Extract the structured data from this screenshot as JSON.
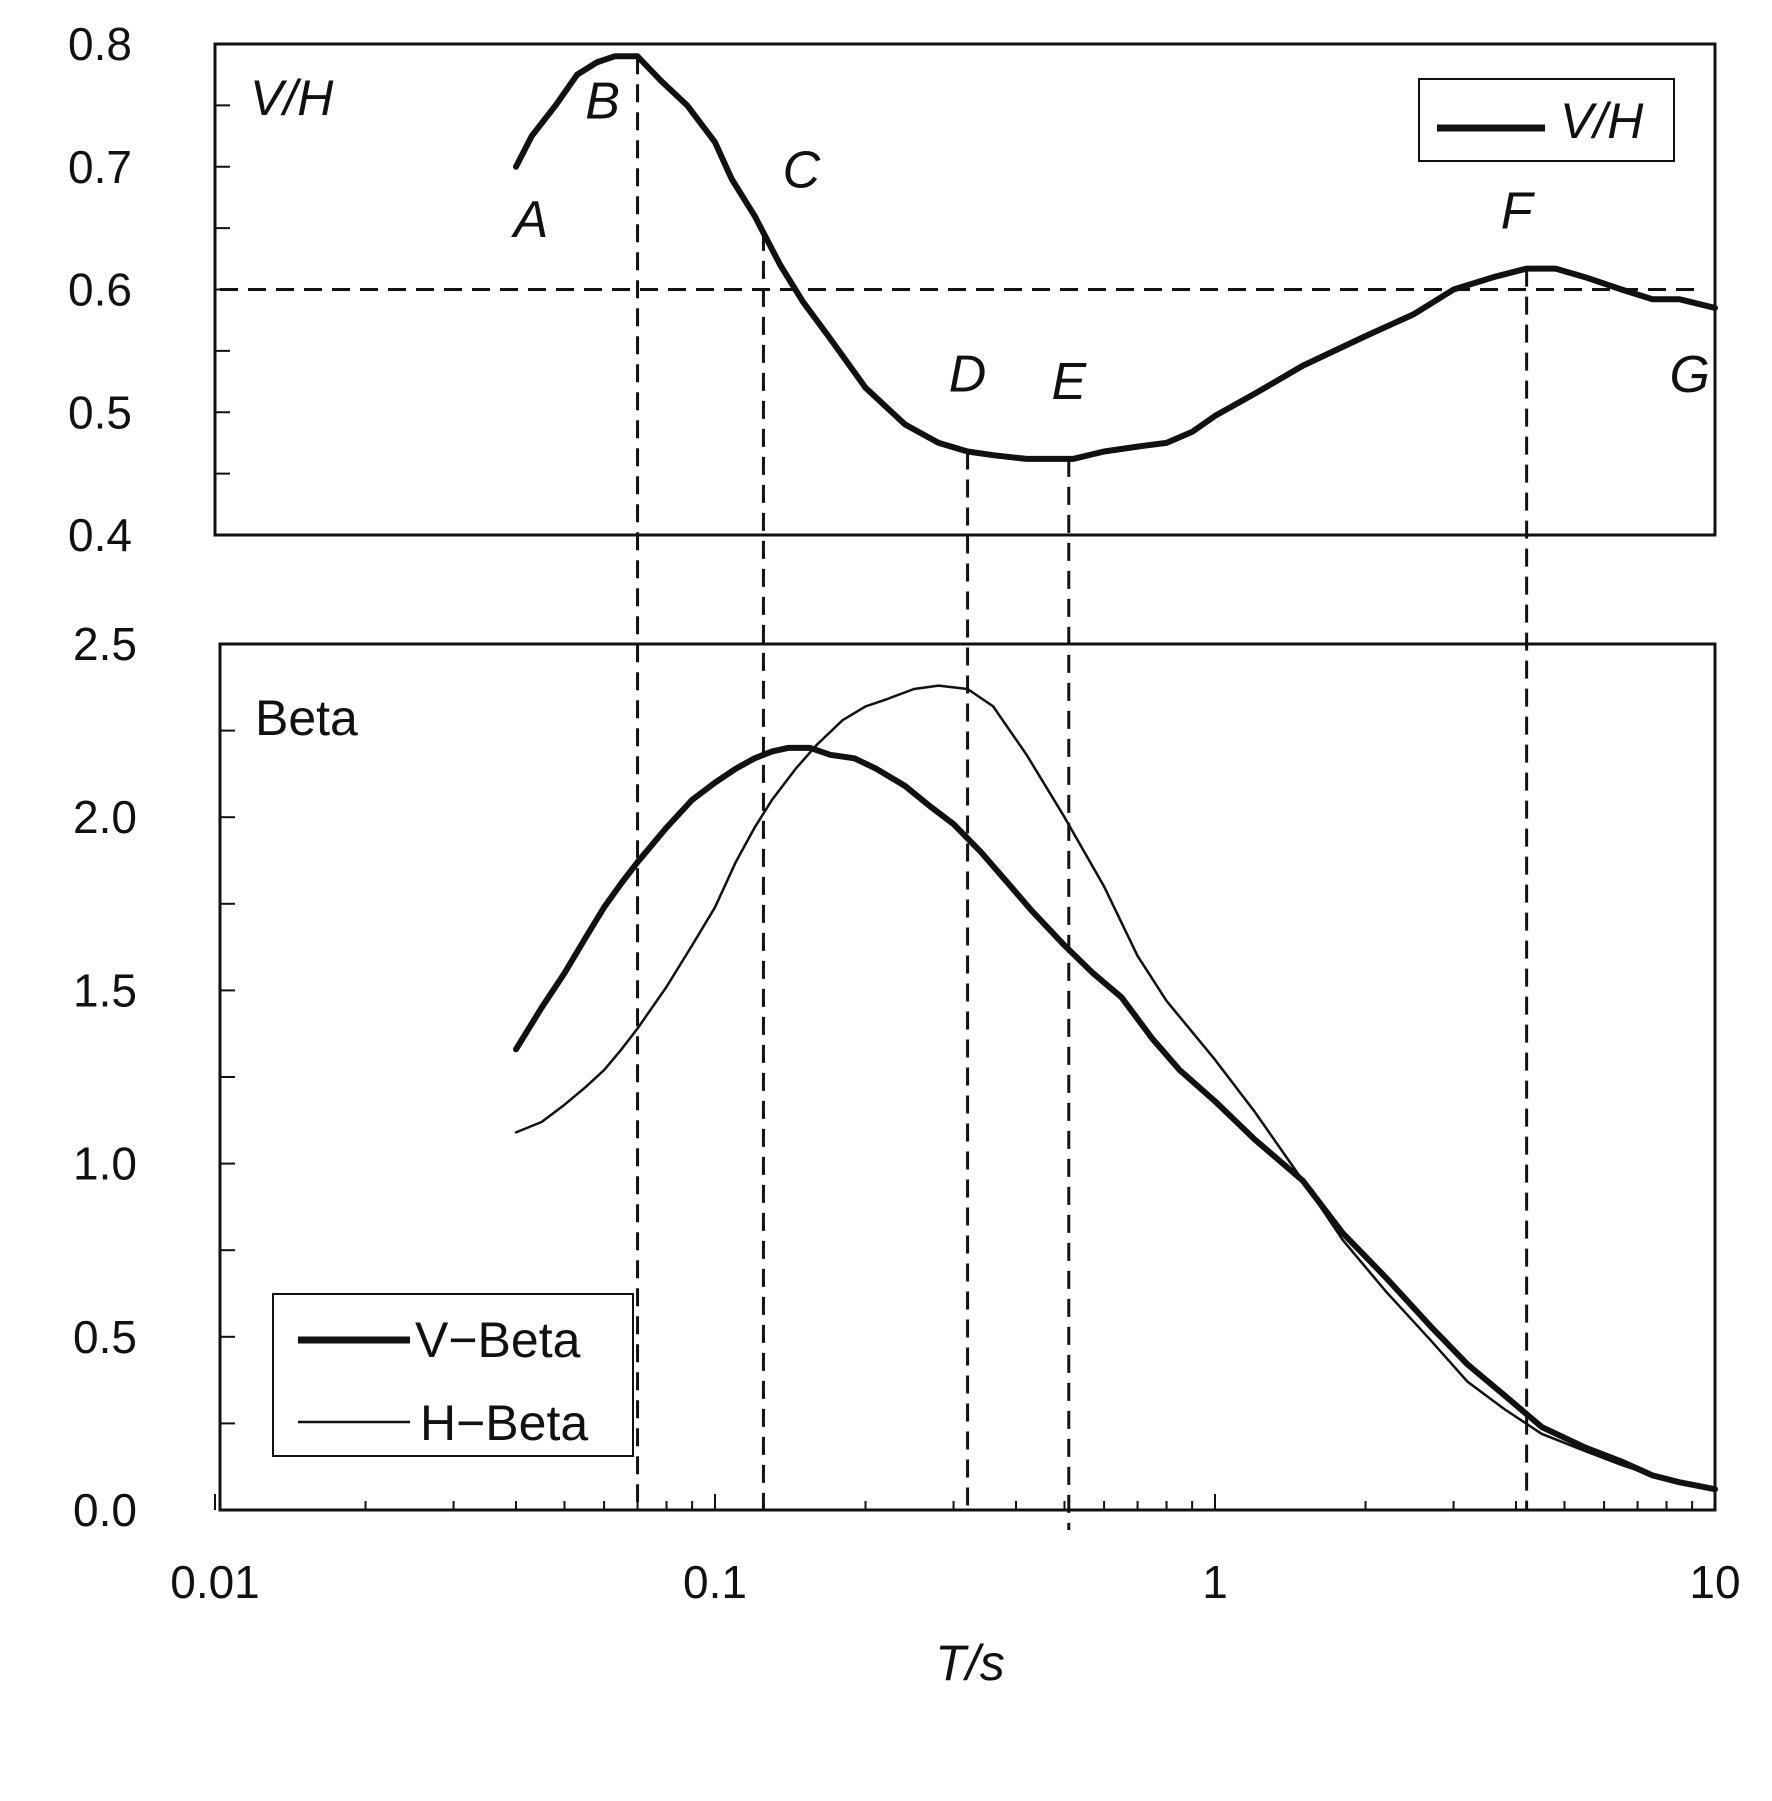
{
  "chart_data": [
    {
      "type": "line",
      "panel": "top",
      "title": "",
      "panel_label": "V/H",
      "xlabel": "T/s",
      "ylabel": "",
      "xscale": "log",
      "xlim": [
        0.01,
        10
      ],
      "ylim": [
        0.4,
        0.8
      ],
      "yticks": [
        "0.4",
        "0.5",
        "0.6",
        "0.7",
        "0.8"
      ],
      "grid": false,
      "legend_position": "top-right",
      "legend": [
        "V/H"
      ],
      "reference_line_y": 0.6,
      "series": [
        {
          "name": "V/H",
          "x": [
            0.04,
            0.043,
            0.048,
            0.053,
            0.058,
            0.063,
            0.07,
            0.078,
            0.088,
            0.1,
            0.108,
            0.12,
            0.135,
            0.15,
            0.17,
            0.2,
            0.24,
            0.28,
            0.32,
            0.36,
            0.42,
            0.47,
            0.52,
            0.6,
            0.7,
            0.8,
            0.9,
            1.0,
            1.2,
            1.5,
            2.0,
            2.5,
            3.0,
            3.6,
            4.2,
            4.8,
            5.5,
            6.5,
            7.5,
            8.5,
            10.0
          ],
          "values": [
            0.7,
            0.725,
            0.75,
            0.775,
            0.785,
            0.79,
            0.79,
            0.77,
            0.75,
            0.72,
            0.69,
            0.66,
            0.62,
            0.59,
            0.56,
            0.52,
            0.49,
            0.475,
            0.468,
            0.465,
            0.462,
            0.462,
            0.462,
            0.468,
            0.472,
            0.475,
            0.484,
            0.497,
            0.515,
            0.538,
            0.562,
            0.58,
            0.6,
            0.61,
            0.617,
            0.617,
            0.61,
            0.6,
            0.592,
            0.592,
            0.585
          ]
        }
      ],
      "points": [
        {
          "label": "A",
          "x": 0.04,
          "y": 0.7
        },
        {
          "label": "B",
          "x": 0.07,
          "y": 0.79
        },
        {
          "label": "C",
          "x": 0.125,
          "y": 0.665
        },
        {
          "label": "D",
          "x": 0.32,
          "y": 0.468
        },
        {
          "label": "E",
          "x": 0.51,
          "y": 0.462
        },
        {
          "label": "F",
          "x": 4.2,
          "y": 0.617
        },
        {
          "label": "G",
          "x": 8.5,
          "y": 0.59
        }
      ]
    },
    {
      "type": "line",
      "panel": "bottom",
      "title": "",
      "panel_label": "Beta",
      "xlabel": "T/s",
      "ylabel": "",
      "xscale": "log",
      "xlim": [
        0.01,
        10
      ],
      "ylim": [
        0.0,
        2.5
      ],
      "yticks": [
        "0.0",
        "0.5",
        "1.0",
        "1.5",
        "2.0",
        "2.5"
      ],
      "xticks": [
        "0.01",
        "0.1",
        "1",
        "10"
      ],
      "grid": false,
      "legend_position": "bottom-left",
      "legend": [
        "V−Beta",
        "H−Beta"
      ],
      "series": [
        {
          "name": "V-Beta",
          "x": [
            0.04,
            0.045,
            0.05,
            0.055,
            0.06,
            0.065,
            0.07,
            0.08,
            0.09,
            0.1,
            0.11,
            0.12,
            0.13,
            0.14,
            0.155,
            0.17,
            0.19,
            0.21,
            0.24,
            0.27,
            0.3,
            0.34,
            0.38,
            0.43,
            0.5,
            0.57,
            0.65,
            0.75,
            0.85,
            1.0,
            1.2,
            1.5,
            1.8,
            2.2,
            2.7,
            3.2,
            3.8,
            4.5,
            5.5,
            6.5,
            7.5,
            8.5,
            10.0
          ],
          "values": [
            1.33,
            1.45,
            1.55,
            1.65,
            1.74,
            1.81,
            1.87,
            1.97,
            2.05,
            2.1,
            2.14,
            2.17,
            2.19,
            2.2,
            2.2,
            2.18,
            2.17,
            2.14,
            2.09,
            2.03,
            1.98,
            1.9,
            1.82,
            1.73,
            1.63,
            1.55,
            1.48,
            1.36,
            1.27,
            1.18,
            1.07,
            0.95,
            0.8,
            0.67,
            0.53,
            0.42,
            0.33,
            0.24,
            0.18,
            0.14,
            0.1,
            0.08,
            0.06
          ]
        },
        {
          "name": "H-Beta",
          "x": [
            0.04,
            0.045,
            0.05,
            0.055,
            0.06,
            0.065,
            0.07,
            0.08,
            0.09,
            0.1,
            0.11,
            0.12,
            0.13,
            0.145,
            0.16,
            0.18,
            0.2,
            0.22,
            0.25,
            0.28,
            0.32,
            0.36,
            0.42,
            0.5,
            0.6,
            0.7,
            0.8,
            1.0,
            1.2,
            1.5,
            1.8,
            2.2,
            2.7,
            3.2,
            3.8,
            4.5,
            5.5,
            6.5,
            7.5,
            8.5,
            10.0
          ],
          "values": [
            1.09,
            1.12,
            1.17,
            1.22,
            1.27,
            1.33,
            1.39,
            1.51,
            1.63,
            1.74,
            1.87,
            1.97,
            2.05,
            2.14,
            2.21,
            2.28,
            2.32,
            2.34,
            2.37,
            2.38,
            2.37,
            2.32,
            2.18,
            2.0,
            1.8,
            1.6,
            1.47,
            1.3,
            1.15,
            0.95,
            0.78,
            0.63,
            0.49,
            0.37,
            0.29,
            0.22,
            0.17,
            0.13,
            0.1,
            0.08,
            0.06
          ]
        }
      ]
    }
  ],
  "dashed_verticals_x": [
    0.07,
    0.125,
    0.32,
    0.51,
    4.2
  ]
}
